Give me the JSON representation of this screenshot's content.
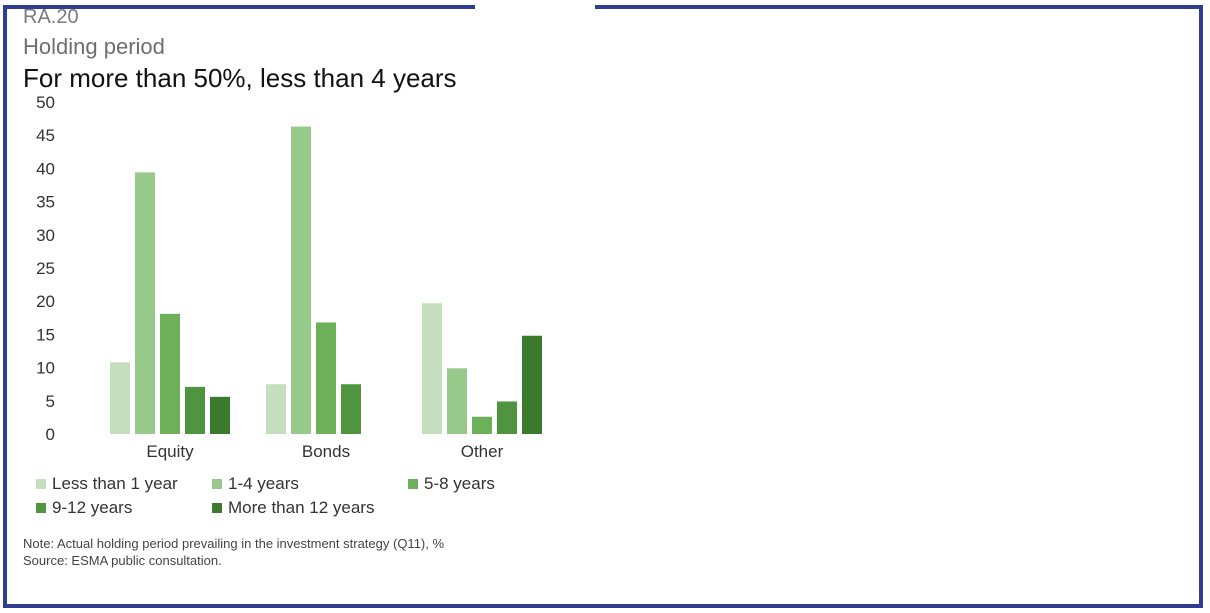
{
  "header": {
    "code": "RA.20",
    "label": "Holding period",
    "title": "For more than 50%, less than 4 years"
  },
  "chart_data": {
    "type": "bar",
    "categories": [
      "Equity",
      "Bonds",
      "Other"
    ],
    "ylim": [
      0,
      50
    ],
    "yticks": [
      0,
      5,
      10,
      15,
      20,
      25,
      30,
      35,
      40,
      45,
      50
    ],
    "grid": false,
    "legend_position": "bottom",
    "series": [
      {
        "name": "Less than 1 year",
        "color": "#c5dfbe",
        "values": [
          10.8,
          7.5,
          19.7
        ]
      },
      {
        "name": "1-4 years",
        "color": "#97c98b",
        "values": [
          39.4,
          46.3,
          9.9
        ]
      },
      {
        "name": "5-8 years",
        "color": "#6cb05a",
        "values": [
          18.1,
          16.8,
          2.6
        ]
      },
      {
        "name": "9-12 years",
        "color": "#4f9540",
        "values": [
          7.1,
          7.5,
          4.9
        ]
      },
      {
        "name": "More than 12 years",
        "color": "#3c7a2e",
        "values": [
          5.6,
          0,
          14.8
        ]
      }
    ]
  },
  "footer": {
    "note": "Note: Actual holding period prevailing in the investment strategy (Q11), %",
    "source": "Source: ESMA public consultation."
  }
}
